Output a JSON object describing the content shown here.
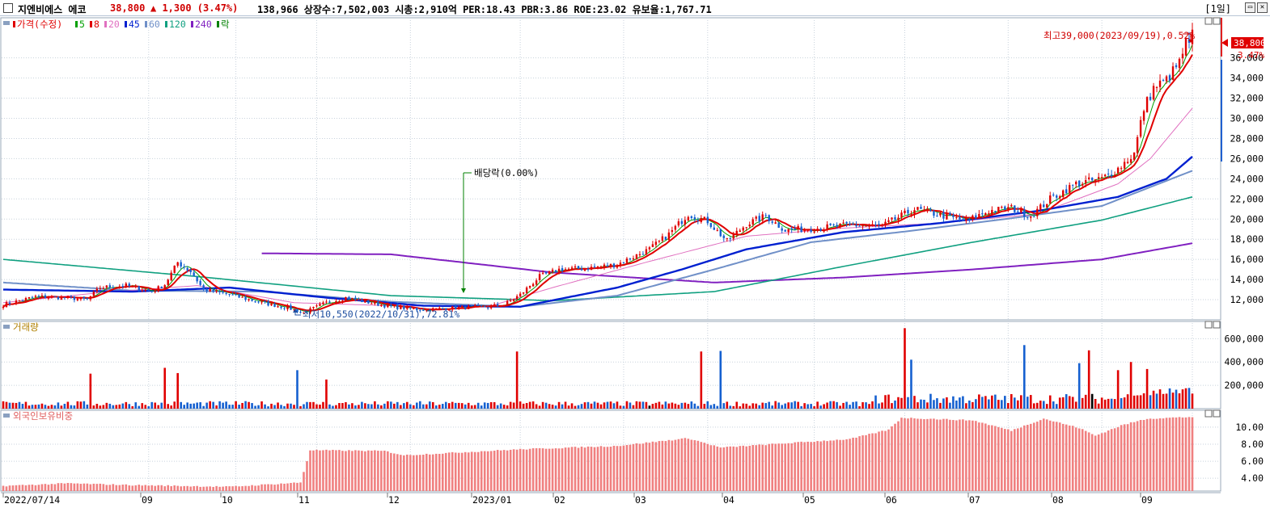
{
  "header": {
    "stock_name": "지엔비에스 에코",
    "price": "38,800",
    "change": "▲ 1,300 (3.47%)",
    "stats": "138,966  상장수:7,502,003 시총:2,910억 PER:18.43 PBR:3.86 ROE:23.02 유보율:1,767.71",
    "period": "[1일]",
    "restore_symbol": "▭",
    "close_symbol": "✕"
  },
  "colors": {
    "up": "#e00000",
    "down": "#1560d0",
    "ma5": "#00a000",
    "ma8": "#e00000",
    "ma20": "#e070c0",
    "ma45": "#0020d0",
    "ma60": "#7090c8",
    "ma120": "#10a080",
    "ma240": "#8020c0",
    "foreign": "#f08080",
    "grid": "#c8d2dc",
    "dividend": "#008000"
  },
  "price_panel": {
    "legend": [
      {
        "label": "가격(수정)",
        "color": "#e00000"
      },
      {
        "label": "5",
        "color": "#00a000"
      },
      {
        "label": "8",
        "color": "#e00000"
      },
      {
        "label": "20",
        "color": "#e070c0"
      },
      {
        "label": "45",
        "color": "#0020d0"
      },
      {
        "label": "60",
        "color": "#7090c8"
      },
      {
        "label": "120",
        "color": "#10a080"
      },
      {
        "label": "240",
        "color": "#8020c0"
      },
      {
        "label": "락",
        "color": "#008000"
      }
    ],
    "high_annotation": "최고39,000(2023/09/19),0.52%",
    "low_annotation": "최저10,550(2022/10/31),72.81%",
    "dividend_annotation": "배당락(0.00%)",
    "current_price_label": "38,800",
    "current_change_label": "3.47%",
    "y_ticks": [
      "12,000",
      "14,000",
      "16,000",
      "18,000",
      "20,000",
      "22,000",
      "24,000",
      "26,000",
      "28,000",
      "30,000",
      "32,000",
      "34,000",
      "36,000"
    ]
  },
  "volume_panel": {
    "title": "거래량",
    "y_ticks": [
      "200,000",
      "400,000",
      "600,000"
    ]
  },
  "foreign_panel": {
    "title": "외국인보유비중",
    "y_ticks": [
      "4.00",
      "6.00",
      "8.00",
      "10.00"
    ]
  },
  "x_axis": {
    "labels": [
      "2022/07/14",
      "09",
      "10",
      "11",
      "12",
      "2023/01",
      "02",
      "03",
      "04",
      "05",
      "06",
      "07",
      "08",
      "09"
    ]
  },
  "chart_data": {
    "type": "candlestick",
    "title": "",
    "x_range": [
      "2022/07/14",
      "2023/09/19"
    ],
    "price_ylim": [
      10000,
      39500
    ],
    "volume_ylim": [
      0,
      720000
    ],
    "foreign_ylim": [
      2.5,
      11.6
    ],
    "price_anchors": [
      [
        0,
        11500
      ],
      [
        10,
        12300
      ],
      [
        20,
        12200
      ],
      [
        26,
        12000
      ],
      [
        30,
        13200
      ],
      [
        38,
        13400
      ],
      [
        46,
        12800
      ],
      [
        50,
        13500
      ],
      [
        54,
        15700
      ],
      [
        58,
        14800
      ],
      [
        62,
        13000
      ],
      [
        70,
        12500
      ],
      [
        80,
        11700
      ],
      [
        88,
        11200
      ],
      [
        93,
        10700
      ],
      [
        100,
        11700
      ],
      [
        106,
        12200
      ],
      [
        112,
        11800
      ],
      [
        120,
        11300
      ],
      [
        130,
        11000
      ],
      [
        140,
        11200
      ],
      [
        150,
        11300
      ],
      [
        155,
        11500
      ],
      [
        160,
        12500
      ],
      [
        166,
        14300
      ],
      [
        172,
        15000
      ],
      [
        180,
        15100
      ],
      [
        190,
        15500
      ],
      [
        200,
        17000
      ],
      [
        206,
        18500
      ],
      [
        212,
        20500
      ],
      [
        218,
        19800
      ],
      [
        224,
        17800
      ],
      [
        230,
        19500
      ],
      [
        236,
        20300
      ],
      [
        242,
        18900
      ],
      [
        252,
        19100
      ],
      [
        262,
        19400
      ],
      [
        272,
        19300
      ],
      [
        282,
        21000
      ],
      [
        290,
        20400
      ],
      [
        298,
        19800
      ],
      [
        305,
        20800
      ],
      [
        312,
        21100
      ],
      [
        318,
        20300
      ],
      [
        324,
        22000
      ],
      [
        332,
        23500
      ],
      [
        340,
        24000
      ],
      [
        345,
        25000
      ],
      [
        350,
        26500
      ],
      [
        353,
        31000
      ],
      [
        356,
        33000
      ],
      [
        360,
        33800
      ],
      [
        364,
        35500
      ],
      [
        366,
        37500
      ],
      [
        368,
        38800
      ]
    ],
    "ma_anchors": {
      "ma20": [
        [
          0,
          11700
        ],
        [
          30,
          12700
        ],
        [
          60,
          13400
        ],
        [
          90,
          11700
        ],
        [
          120,
          11400
        ],
        [
          150,
          11300
        ],
        [
          170,
          13200
        ],
        [
          200,
          15800
        ],
        [
          230,
          18300
        ],
        [
          260,
          19100
        ],
        [
          290,
          19600
        ],
        [
          320,
          20500
        ],
        [
          345,
          23500
        ],
        [
          355,
          26000
        ],
        [
          368,
          31000
        ]
      ],
      "ma45": [
        [
          0,
          13000
        ],
        [
          40,
          12800
        ],
        [
          70,
          13200
        ],
        [
          100,
          12200
        ],
        [
          130,
          11400
        ],
        [
          160,
          11300
        ],
        [
          190,
          13200
        ],
        [
          210,
          15000
        ],
        [
          230,
          17000
        ],
        [
          260,
          18700
        ],
        [
          290,
          19600
        ],
        [
          320,
          20800
        ],
        [
          345,
          22200
        ],
        [
          360,
          24000
        ],
        [
          368,
          26200
        ]
      ],
      "ma60": [
        [
          0,
          13700
        ],
        [
          40,
          12900
        ],
        [
          80,
          12800
        ],
        [
          120,
          11800
        ],
        [
          160,
          11300
        ],
        [
          190,
          12400
        ],
        [
          220,
          15000
        ],
        [
          250,
          17700
        ],
        [
          280,
          18800
        ],
        [
          310,
          20000
        ],
        [
          340,
          21300
        ],
        [
          368,
          24800
        ]
      ],
      "ma120": [
        [
          0,
          16000
        ],
        [
          60,
          14300
        ],
        [
          120,
          12400
        ],
        [
          170,
          11900
        ],
        [
          220,
          12800
        ],
        [
          260,
          15300
        ],
        [
          300,
          17700
        ],
        [
          340,
          19900
        ],
        [
          368,
          22200
        ]
      ],
      "ma240": [
        [
          80,
          16600
        ],
        [
          120,
          16500
        ],
        [
          170,
          14700
        ],
        [
          220,
          13700
        ],
        [
          260,
          14200
        ],
        [
          300,
          15000
        ],
        [
          340,
          16000
        ],
        [
          368,
          17600
        ]
      ]
    },
    "volume_spikes": [
      [
        27,
        300000
      ],
      [
        50,
        350000
      ],
      [
        54,
        305000
      ],
      [
        91,
        330000
      ],
      [
        100,
        250000
      ],
      [
        159,
        490000
      ],
      [
        216,
        490000
      ],
      [
        222,
        495000
      ],
      [
        279,
        690000
      ],
      [
        281,
        420000
      ],
      [
        316,
        545000
      ],
      [
        333,
        390000
      ],
      [
        336,
        500000
      ],
      [
        345,
        330000
      ],
      [
        349,
        400000
      ],
      [
        354,
        340000
      ]
    ],
    "foreign_anchors": [
      [
        0,
        3.1
      ],
      [
        20,
        3.4
      ],
      [
        40,
        3.2
      ],
      [
        70,
        3.0
      ],
      [
        92,
        3.5
      ],
      [
        95,
        7.3
      ],
      [
        118,
        7.2
      ],
      [
        124,
        6.7
      ],
      [
        160,
        7.4
      ],
      [
        190,
        7.8
      ],
      [
        212,
        8.7
      ],
      [
        222,
        7.6
      ],
      [
        262,
        8.6
      ],
      [
        274,
        9.7
      ],
      [
        278,
        11.1
      ],
      [
        300,
        10.8
      ],
      [
        312,
        9.6
      ],
      [
        322,
        11.0
      ],
      [
        333,
        9.9
      ],
      [
        338,
        9.0
      ],
      [
        346,
        10.2
      ],
      [
        354,
        11.0
      ],
      [
        368,
        11.2
      ]
    ],
    "n_days": 369
  }
}
